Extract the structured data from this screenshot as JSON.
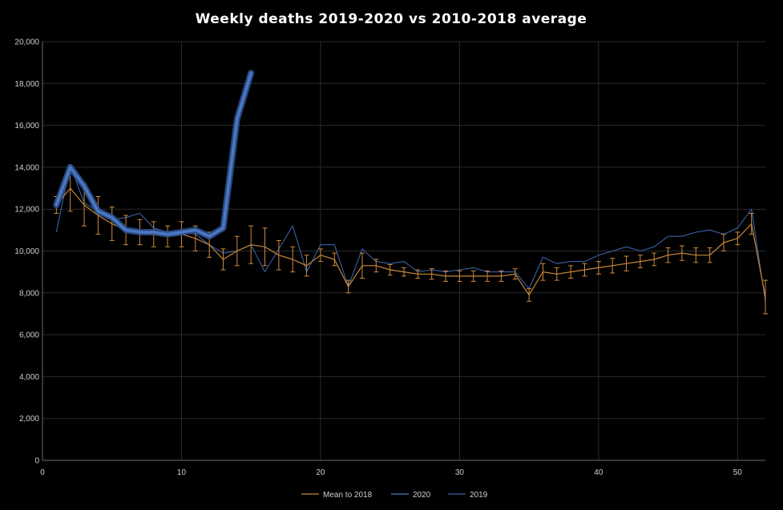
{
  "chart_data": {
    "type": "line",
    "title": "Weekly deaths 2019-2020 vs 2010-2018 average",
    "xlabel": "",
    "ylabel": "",
    "xlim": [
      0,
      52
    ],
    "ylim": [
      0,
      20000
    ],
    "x_ticks": [
      "0",
      "10",
      "20",
      "30",
      "40",
      "50"
    ],
    "y_ticks": [
      "0",
      "2,000",
      "4,000",
      "6,000",
      "8,000",
      "10,000",
      "12,000",
      "14,000",
      "16,000",
      "18,000",
      "20,000"
    ],
    "grid": true,
    "legend_position": "bottom",
    "colors": {
      "mean": "#c8873a",
      "s2020": "#4a78c4",
      "s2019": "#3a62a8",
      "errorbar": "#d08a3c"
    },
    "series": [
      {
        "name": "Mean to 2018",
        "x": [
          1,
          2,
          3,
          4,
          5,
          6,
          7,
          8,
          9,
          10,
          11,
          12,
          13,
          14,
          15,
          16,
          17,
          18,
          19,
          20,
          21,
          22,
          23,
          24,
          25,
          26,
          27,
          28,
          29,
          30,
          31,
          32,
          33,
          34,
          35,
          36,
          37,
          38,
          39,
          40,
          41,
          42,
          43,
          44,
          45,
          46,
          47,
          48,
          49,
          50,
          51,
          52
        ],
        "y": [
          12200,
          13000,
          12200,
          11700,
          11300,
          11000,
          10900,
          10800,
          10700,
          10800,
          10600,
          10300,
          9600,
          10000,
          10300,
          10200,
          9800,
          9600,
          9300,
          9800,
          9600,
          8300,
          9300,
          9300,
          9100,
          9000,
          8900,
          8900,
          8800,
          8800,
          8800,
          8800,
          8800,
          8900,
          7900,
          9000,
          8900,
          9000,
          9100,
          9200,
          9300,
          9400,
          9500,
          9600,
          9800,
          9900,
          9800,
          9800,
          10400,
          10600,
          11300,
          7800
        ],
        "errors": [
          400,
          1100,
          1000,
          900,
          800,
          700,
          600,
          600,
          500,
          600,
          600,
          600,
          500,
          700,
          900,
          900,
          700,
          600,
          500,
          300,
          300,
          300,
          600,
          300,
          250,
          200,
          200,
          250,
          250,
          250,
          250,
          250,
          250,
          250,
          300,
          400,
          300,
          300,
          300,
          300,
          350,
          350,
          300,
          300,
          350,
          350,
          350,
          350,
          400,
          300,
          500,
          800
        ]
      },
      {
        "name": "2020",
        "x": [
          1,
          2,
          3,
          4,
          5,
          6,
          7,
          8,
          9,
          10,
          11,
          12,
          13,
          14,
          15
        ],
        "y": [
          12200,
          14000,
          13100,
          11900,
          11600,
          11000,
          10900,
          10900,
          10800,
          10900,
          11000,
          10700,
          11100,
          16300,
          18500
        ]
      },
      {
        "name": "2019",
        "x": [
          1,
          2,
          3,
          4,
          5,
          6,
          7,
          8,
          9,
          10,
          11,
          12,
          13,
          14,
          15,
          16,
          17,
          18,
          19,
          20,
          21,
          22,
          23,
          24,
          25,
          26,
          27,
          28,
          29,
          30,
          31,
          32,
          33,
          34,
          35,
          36,
          37,
          38,
          39,
          40,
          41,
          42,
          43,
          44,
          45,
          46,
          47,
          48,
          49,
          50,
          51,
          52
        ],
        "y": [
          10900,
          14100,
          12300,
          11900,
          11500,
          11600,
          11800,
          11100,
          10900,
          11000,
          10800,
          10300,
          9900,
          10000,
          10300,
          9000,
          10100,
          11200,
          9000,
          10300,
          10300,
          8300,
          10100,
          9500,
          9400,
          9500,
          9000,
          9100,
          9000,
          9100,
          9200,
          9000,
          9000,
          9000,
          8200,
          9700,
          9400,
          9500,
          9500,
          9800,
          10000,
          10200,
          10000,
          10200,
          10700,
          10700,
          10900,
          11000,
          10800,
          11100,
          12000,
          7600
        ]
      }
    ]
  }
}
